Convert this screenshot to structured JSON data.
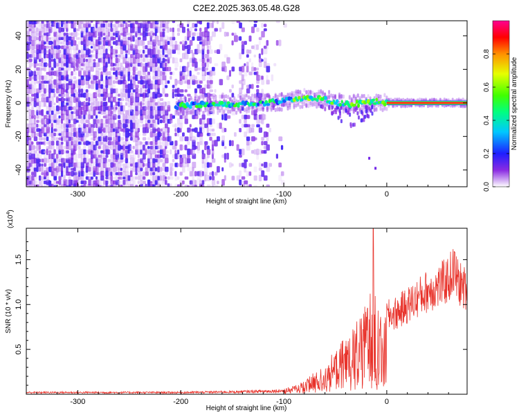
{
  "title": "C2E2.2025.363.05.48.G28",
  "chart_data": [
    {
      "type": "heatmap",
      "xlabel": "Height of straight line (km)",
      "ylabel": "Frequency (Hz)",
      "xlim": [
        -350,
        78
      ],
      "ylim": [
        -50,
        49
      ],
      "xticks": [
        -300,
        -200,
        -100,
        0
      ],
      "xtick_labels": [
        "-300",
        "-200",
        "-100",
        "0"
      ],
      "yticks": [
        -40,
        -20,
        0,
        20,
        40
      ],
      "ytick_labels": [
        "-40",
        "-20",
        "0",
        "20",
        "40"
      ],
      "ridge": {
        "description_points": [
          [
            -205,
            -2
          ],
          [
            -180,
            -1
          ],
          [
            -150,
            -1
          ],
          [
            -120,
            0
          ],
          [
            -100,
            1
          ],
          [
            -80,
            3
          ],
          [
            -60,
            2
          ],
          [
            -40,
            -1
          ],
          [
            -20,
            0
          ],
          [
            -8,
            1
          ],
          [
            0,
            0
          ],
          [
            78,
            0
          ]
        ],
        "steady_band_start_km": 0,
        "steady_band_freq": 0
      },
      "noise_region_km": [
        -350,
        -95
      ],
      "colorbar": {
        "label": "Normalized spectral amplitude",
        "range": [
          0,
          1
        ],
        "ticks": [
          0.0,
          0.2,
          0.4,
          0.6,
          0.8
        ],
        "tick_labels": [
          "0.0",
          "0.2",
          "0.4",
          "0.6",
          "0.8"
        ],
        "colors": [
          "#ffffff",
          "#c8a0f0",
          "#8a2be2",
          "#2020ff",
          "#00c8ff",
          "#00ff80",
          "#80ff00",
          "#ffff00",
          "#ff8000",
          "#ff0000",
          "#ff0080"
        ]
      }
    },
    {
      "type": "line",
      "xlabel": "Height of straight line (km)",
      "ylabel": "SNR (10 * v/v)",
      "y_multiplier": "(x10",
      "y_multiplier_exp": "4",
      "y_multiplier_close": ")",
      "xlim": [
        -350,
        78
      ],
      "ylim": [
        0,
        1.85
      ],
      "xticks": [
        -300,
        -200,
        -100,
        0
      ],
      "xtick_labels": [
        "-300",
        "-200",
        "-100",
        "0"
      ],
      "yticks": [
        0.5,
        1.0,
        1.5
      ],
      "ytick_labels": [
        "0.5",
        "1.0",
        "1.5"
      ],
      "line_color": "#e8322a",
      "envelope": {
        "x": [
          -350,
          -200,
          -150,
          -120,
          -100,
          -90,
          -80,
          -70,
          -60,
          -50,
          -40,
          -30,
          -25,
          -20,
          -15,
          -13,
          -10,
          -5,
          0,
          10,
          20,
          30,
          40,
          50,
          60,
          65,
          70,
          78
        ],
        "y": [
          0.03,
          0.03,
          0.04,
          0.05,
          0.06,
          0.1,
          0.15,
          0.25,
          0.35,
          0.5,
          0.65,
          0.8,
          0.95,
          1.05,
          1.2,
          1.85,
          1.0,
          0.95,
          1.05,
          1.1,
          1.2,
          1.3,
          1.4,
          1.45,
          1.55,
          1.68,
          1.5,
          1.4
        ]
      }
    }
  ]
}
